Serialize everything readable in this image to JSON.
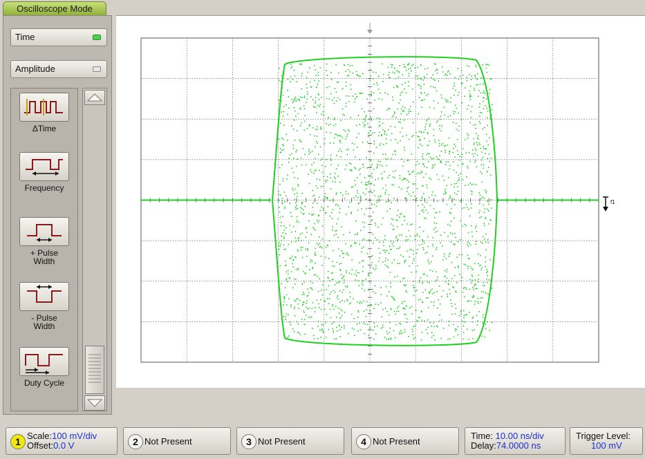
{
  "mode_tab": {
    "label": "Oscilloscope Mode"
  },
  "selectors": [
    {
      "label": "Time",
      "active": true
    },
    {
      "label": "Amplitude",
      "active": false
    }
  ],
  "measurements": [
    {
      "label": "ΔTime",
      "icon": "delta-time-icon"
    },
    {
      "label": "Frequency",
      "icon": "frequency-icon"
    },
    {
      "label": "+ Pulse Width",
      "line1": "+ Pulse",
      "line2": "Width",
      "icon": "positive-pulse-width-icon"
    },
    {
      "label": "- Pulse Width",
      "line1": "- Pulse",
      "line2": "Width",
      "icon": "negative-pulse-width-icon"
    },
    {
      "label": "Duty Cycle",
      "icon": "duty-cycle-icon"
    }
  ],
  "display": {
    "trace_color": "#1fd11f",
    "grid_divisions_x": 10,
    "grid_divisions_y": 8,
    "trigger_marker": "f1"
  },
  "channels": [
    {
      "number": "1",
      "scale_label": "Scale:",
      "scale_value": "100 mV/div",
      "offset_label": "Offset:",
      "offset_value": "0.0 V",
      "color": "#f2e80a"
    },
    {
      "number": "2",
      "status": "Not Present"
    },
    {
      "number": "3",
      "status": "Not Present"
    },
    {
      "number": "4",
      "status": "Not Present"
    }
  ],
  "timebase": {
    "time_label": "Time:",
    "time_value": "10.00 ns/div",
    "delay_label": "Delay:",
    "delay_value": "74.0000 ns"
  },
  "trigger": {
    "label": "Trigger Level:",
    "value": "100 mV"
  },
  "colors": {
    "active_led": "#49d24b",
    "inactive_led": "#bdbdbd",
    "value_text": "#1b2fd1"
  }
}
